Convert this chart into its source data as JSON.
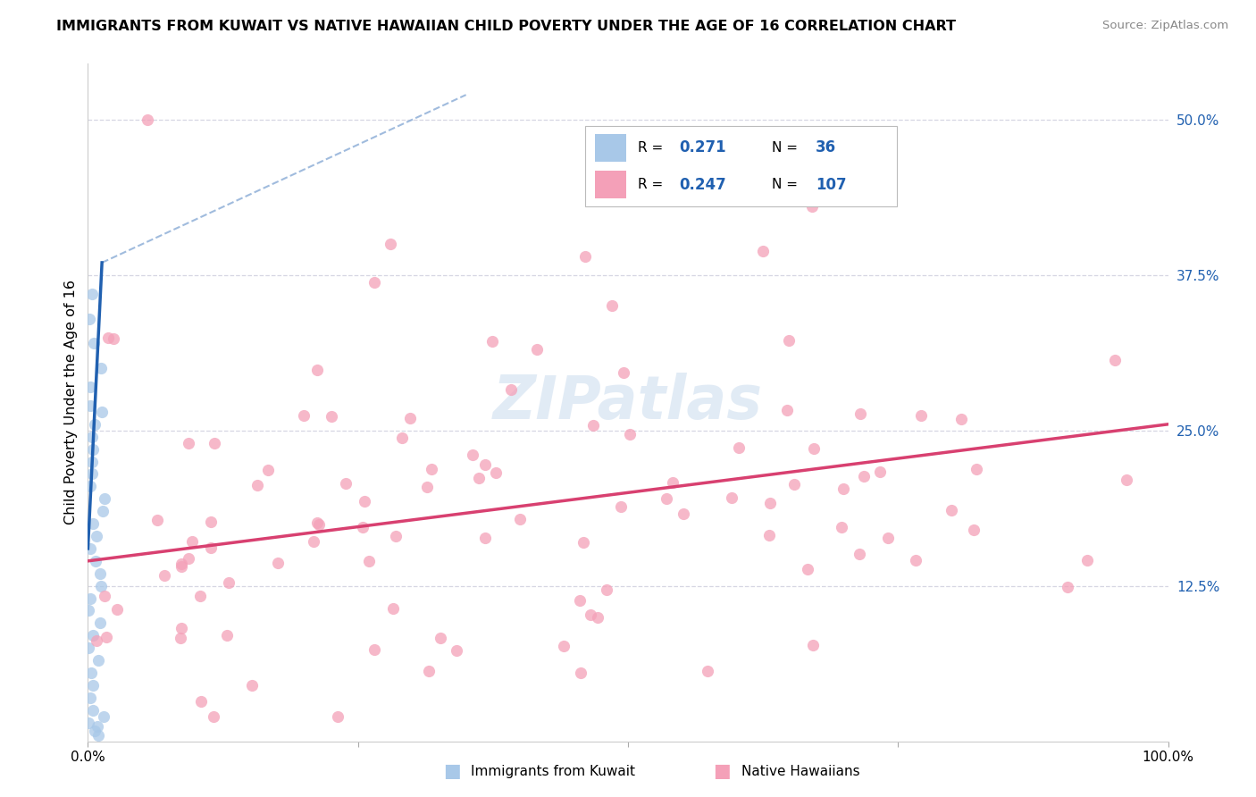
{
  "title": "IMMIGRANTS FROM KUWAIT VS NATIVE HAWAIIAN CHILD POVERTY UNDER THE AGE OF 16 CORRELATION CHART",
  "source": "Source: ZipAtlas.com",
  "ylabel": "Child Poverty Under the Age of 16",
  "xlim": [
    0.0,
    1.0
  ],
  "ylim": [
    0.0,
    0.545
  ],
  "color_blue": "#a8c8e8",
  "color_pink": "#f4a0b8",
  "trendline_blue": "#2060b0",
  "trendline_pink": "#d84070",
  "dashed_color": "#90b0d8",
  "legend_r1": "0.271",
  "legend_n1": "36",
  "legend_r2": "0.247",
  "legend_n2": "107"
}
